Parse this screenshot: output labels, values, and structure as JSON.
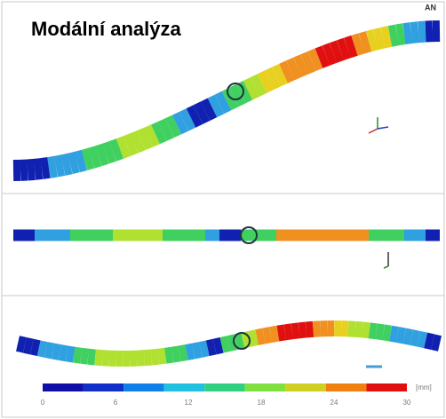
{
  "title": "Modální analýza",
  "logo": "AN",
  "legend": {
    "ticks": [
      0,
      6,
      12,
      18,
      24,
      30
    ],
    "unit": "[mm]"
  }
}
